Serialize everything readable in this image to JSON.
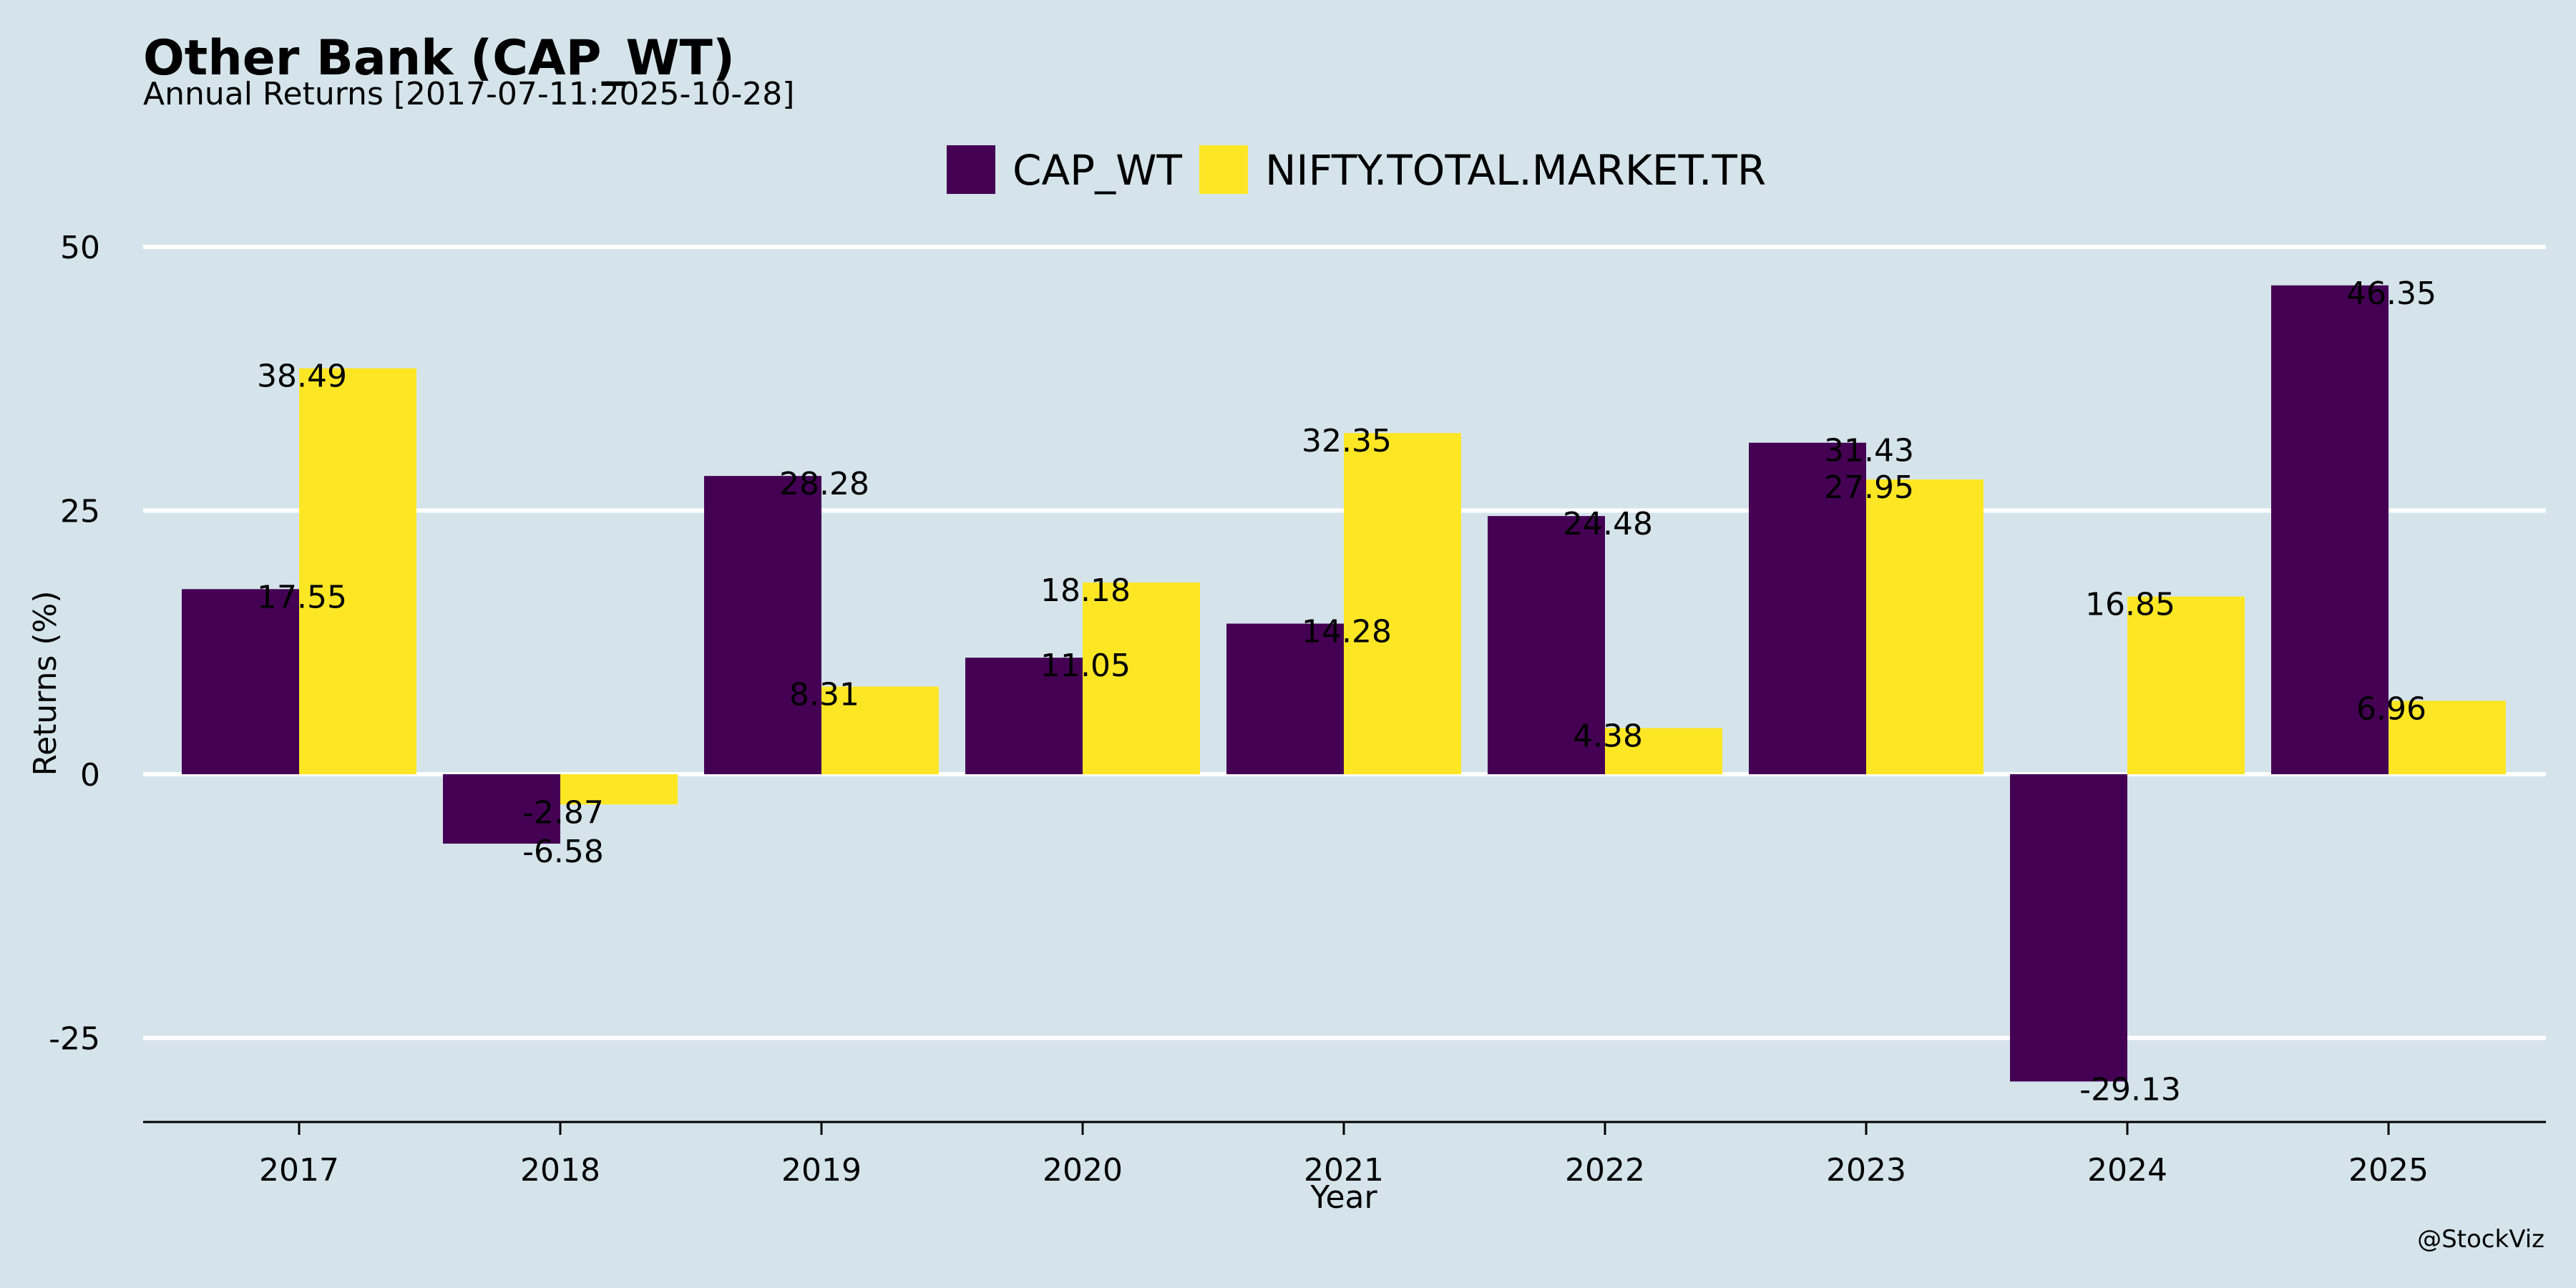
{
  "colors": {
    "background": "#d5e4eb",
    "grid": "#ffffff",
    "axis": "#000000",
    "series": [
      "#440154",
      "#fde725"
    ]
  },
  "credit": "@StockViz",
  "chart_data": {
    "type": "bar",
    "title": "Other Bank (CAP_WT)",
    "subtitle": "Annual Returns [2017-07-11:2025-10-28]",
    "xlabel": "Year",
    "ylabel": "Returns (%)",
    "categories": [
      "2017",
      "2018",
      "2019",
      "2020",
      "2021",
      "2022",
      "2023",
      "2024",
      "2025"
    ],
    "series": [
      {
        "name": "CAP_WT",
        "values": [
          17.55,
          -6.58,
          28.28,
          11.05,
          14.28,
          24.48,
          31.43,
          -29.13,
          46.35
        ]
      },
      {
        "name": "NIFTY.TOTAL.MARKET.TR",
        "values": [
          38.49,
          -2.87,
          8.31,
          18.18,
          32.35,
          4.38,
          27.95,
          16.85,
          6.96
        ]
      }
    ],
    "yticks": [
      -25,
      0,
      25,
      50
    ],
    "ytick_labels": [
      "-25",
      "0",
      "25",
      "50"
    ],
    "ylim": [
      -33,
      52
    ],
    "grid": "horizontal",
    "legend_position": "top-center"
  }
}
